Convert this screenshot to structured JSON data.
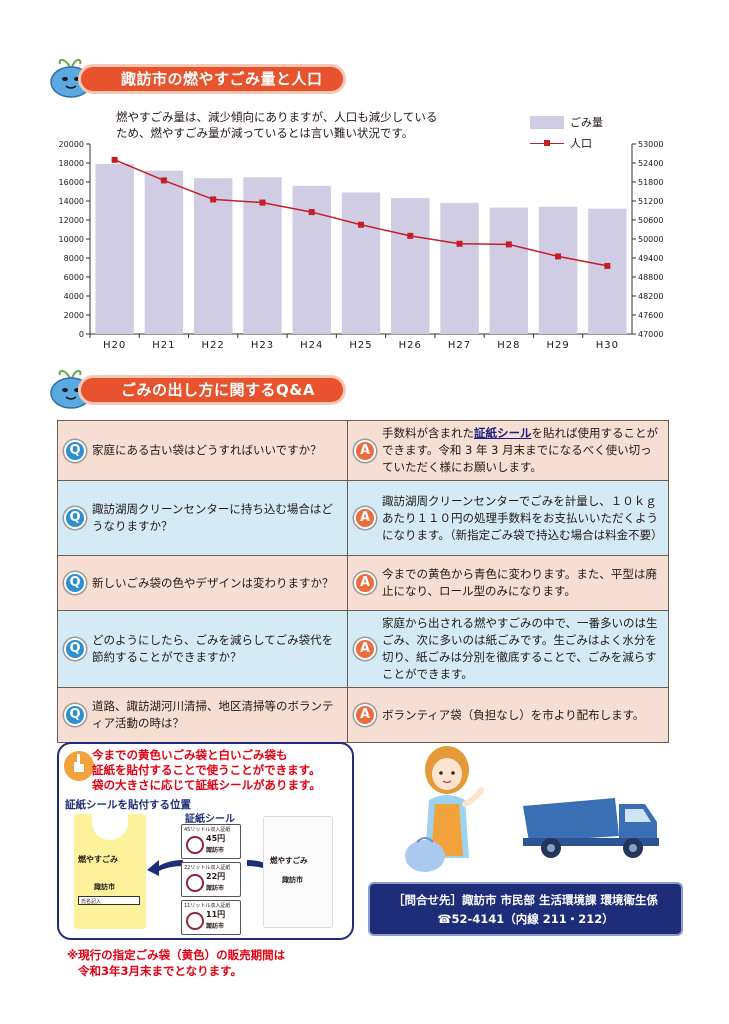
{
  "section1": {
    "title": "諏訪市の燃やすごみ量と人口"
  },
  "chart_intro": {
    "line1": "燃やすごみ量は、減少傾向にありますが、人口も減少している",
    "line2": "ため、燃やすごみ量が減っているとは言い難い状況です。"
  },
  "chart_data": {
    "type": "bar",
    "categories": [
      "H20",
      "H21",
      "H22",
      "H23",
      "H24",
      "H25",
      "H26",
      "H27",
      "H28",
      "H29",
      "H30"
    ],
    "series": [
      {
        "name": "ごみ量",
        "type": "bar",
        "axis": "left",
        "values": [
          17900,
          17200,
          16400,
          16500,
          15600,
          14900,
          14300,
          13800,
          13300,
          13400,
          13200
        ]
      },
      {
        "name": "人口",
        "type": "line",
        "axis": "right",
        "values": [
          52500,
          51850,
          51250,
          51150,
          50850,
          50450,
          50100,
          49850,
          49830,
          49450,
          49150
        ]
      }
    ],
    "ylim_left": [
      0,
      20000
    ],
    "yticks_left": [
      "0",
      "2000",
      "4000",
      "6000",
      "8000",
      "10000",
      "12000",
      "14000",
      "16000",
      "18000",
      "20000"
    ],
    "ylim_right": [
      47000,
      53000
    ],
    "yticks_right": [
      "47000",
      "47600",
      "48200",
      "48800",
      "49400",
      "50000",
      "50600",
      "51200",
      "51800",
      "52400",
      "53000"
    ],
    "legend": [
      "ごみ量",
      "人口"
    ],
    "colors": {
      "bar": "#cfcce4",
      "line": "#c41f27"
    }
  },
  "section2": {
    "title": "ごみの出し方に関するQ&A"
  },
  "qa": [
    {
      "q": "家庭にある古い袋はどうすればいいですか？",
      "a_pre": "手数料が含まれた",
      "a_hl": "証紙シール",
      "a_post": "を貼れば使用することができます。令和 3 年 3 月末までになるべく使い切っていただく様にお願いします。"
    },
    {
      "q": "諏訪湖周クリーンセンターに持ち込む場合はどうなりますか？",
      "a_pre": "諏訪湖周クリーンセンターでごみを計量し、１０ｋｇあたり１１０円の処理手数料をお支払いいただくようになります。（新指定ごみ袋で持込む場合は料金不要）",
      "a_hl": "",
      "a_post": ""
    },
    {
      "q": "新しいごみ袋の色やデザインは変わりますか？",
      "a_pre": "今までの黄色から青色に変わります。また、平型は廃止になり、ロール型のみになります。",
      "a_hl": "",
      "a_post": ""
    },
    {
      "q": "どのようにしたら、ごみを減らしてごみ袋代を節約することができますか？",
      "a_pre": "家庭から出される燃やすごみの中で、一番多いのは生ごみ、次に多いのは紙ごみです。生ごみはよく水分を切り、紙ごみは分別を徹底することで、ごみを減らすことができます。",
      "a_hl": "",
      "a_post": ""
    },
    {
      "q": "道路、諏訪湖河川清掃、地区清掃等のボランティア活動の時は？",
      "a_pre": "ボランティア袋（負担なし）を市より配布します。",
      "a_hl": "",
      "a_post": ""
    }
  ],
  "badges": {
    "q": "Q",
    "a": "A"
  },
  "check": {
    "icon_label": "CHECK",
    "line1": "今までの黄色いごみ袋と白いごみ袋も",
    "line2": "証紙を貼付することで使うことができます。",
    "line3": "袋の大きさに応じて証紙シールがあります。",
    "position_label": "証紙シールを貼付する位置",
    "sticker_title": "証紙シール",
    "bag_text": "燃やすごみ",
    "bag_city": "諏訪市",
    "bag_name_field": "氏名記入",
    "stickers": [
      {
        "cap": "45リットル収入証紙",
        "price": "45円",
        "city": "諏訪市"
      },
      {
        "cap": "22リットル収入証紙",
        "price": "22円",
        "city": "諏訪市"
      },
      {
        "cap": "11リットル収入証紙",
        "price": "11円",
        "city": "諏訪市"
      }
    ]
  },
  "notice": {
    "line1": "※現行の指定ごみ袋（黄色）の販売期間は",
    "line2": "令和3年3月末までとなります。"
  },
  "contact": {
    "line1": "［問合せ先］諏訪市 市民部 生活環境課 環境衛生係",
    "line2": "☎52-4141（内線 211・212）"
  }
}
